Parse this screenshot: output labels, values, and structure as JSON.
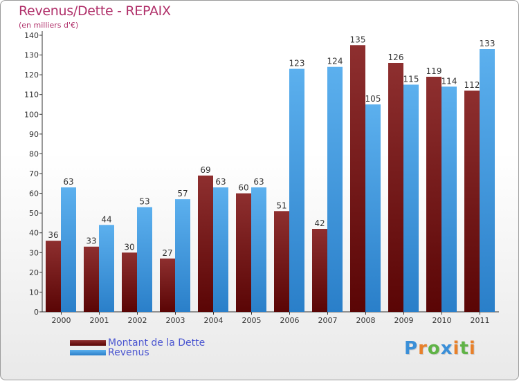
{
  "header": {
    "title": "Revenus/Dette - REPAIX",
    "subtitle": "(en milliers d'€)"
  },
  "legend": [
    {
      "label": "Montant de la Dette",
      "color": "#6b0d0d"
    },
    {
      "label": "Revenus",
      "color": "#4aa0e6"
    }
  ],
  "logo": {
    "text": "Proxiti"
  },
  "colors": {
    "dette_dark": "#5a0505",
    "dette_light": "#8e2f2f",
    "revenus_dark": "#2a7fc9",
    "revenus_light": "#5cb0ee",
    "axis": "#333333",
    "label": "#333333"
  },
  "chart_data": {
    "type": "bar",
    "title": "Revenus/Dette - REPAIX",
    "subtitle": "(en milliers d'€)",
    "xlabel": "",
    "ylabel": "",
    "ylim": [
      0,
      140
    ],
    "yticks": [
      0,
      10,
      20,
      30,
      40,
      50,
      60,
      70,
      80,
      90,
      100,
      110,
      120,
      130,
      140
    ],
    "categories": [
      "2000",
      "2001",
      "2002",
      "2003",
      "2004",
      "2005",
      "2006",
      "2007",
      "2008",
      "2009",
      "2010",
      "2011"
    ],
    "series": [
      {
        "name": "Montant de la Dette",
        "values": [
          36,
          33,
          30,
          27,
          69,
          60,
          51,
          42,
          135,
          126,
          119,
          112
        ]
      },
      {
        "name": "Revenus",
        "values": [
          63,
          44,
          53,
          57,
          63,
          63,
          123,
          124,
          105,
          115,
          114,
          133
        ]
      }
    ],
    "legend_position": "bottom-left",
    "grid": false
  }
}
